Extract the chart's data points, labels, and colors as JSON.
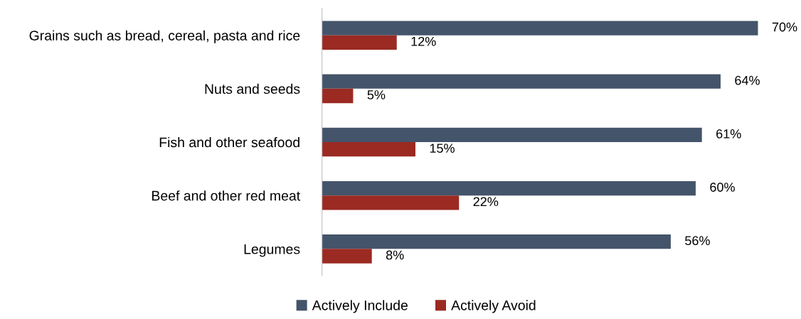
{
  "chart_data": {
    "type": "bar",
    "orientation": "horizontal",
    "categories": [
      "Grains such as bread, cereal, pasta and rice",
      "Nuts and seeds",
      "Fish and other seafood",
      "Beef and other red meat",
      "Legumes"
    ],
    "series": [
      {
        "name": "Actively Include",
        "color": "#44546a",
        "values": [
          70,
          64,
          61,
          60,
          56
        ],
        "value_labels": [
          "70%",
          "64%",
          "61%",
          "60%",
          "56%"
        ]
      },
      {
        "name": "Actively Avoid",
        "color": "#9b2a22",
        "values": [
          12,
          5,
          15,
          22,
          8
        ],
        "value_labels": [
          "12%",
          "5%",
          "15%",
          "22%",
          "8%"
        ]
      }
    ],
    "legend": "bottom",
    "grid": false
  }
}
